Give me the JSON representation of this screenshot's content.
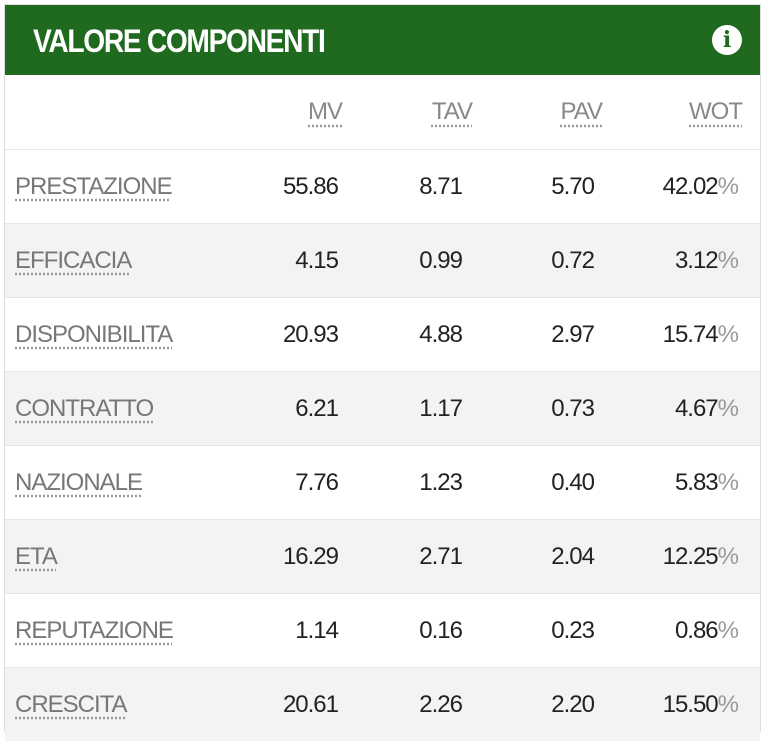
{
  "header": {
    "title": "VALORE COMPONENTI",
    "icon": "i"
  },
  "table": {
    "columns": [
      "MV",
      "TAV",
      "PAV",
      "WOT"
    ],
    "rows": [
      {
        "label": "PRESTAZIONE",
        "cells": [
          "55.86",
          "8.71",
          "5.70"
        ],
        "wot": {
          "number": "42.02",
          "unit": "%"
        }
      },
      {
        "label": "EFFICACIA",
        "cells": [
          "4.15",
          "0.99",
          "0.72"
        ],
        "wot": {
          "number": "3.12",
          "unit": "%"
        }
      },
      {
        "label": "DISPONIBILITA",
        "cells": [
          "20.93",
          "4.88",
          "2.97"
        ],
        "wot": {
          "number": "15.74",
          "unit": "%"
        }
      },
      {
        "label": "CONTRATTO",
        "cells": [
          "6.21",
          "1.17",
          "0.73"
        ],
        "wot": {
          "number": "4.67",
          "unit": "%"
        }
      },
      {
        "label": "NAZIONALE",
        "cells": [
          "7.76",
          "1.23",
          "0.40"
        ],
        "wot": {
          "number": "5.83",
          "unit": "%"
        }
      },
      {
        "label": "ETA",
        "cells": [
          "16.29",
          "2.71",
          "2.04"
        ],
        "wot": {
          "number": "12.25",
          "unit": "%"
        }
      },
      {
        "label": "REPUTAZIONE",
        "cells": [
          "1.14",
          "0.16",
          "0.23"
        ],
        "wot": {
          "number": "0.86",
          "unit": "%"
        }
      },
      {
        "label": "CRESCITA",
        "cells": [
          "20.61",
          "2.26",
          "2.20"
        ],
        "wot": {
          "number": "15.50",
          "unit": "%"
        }
      }
    ]
  }
}
